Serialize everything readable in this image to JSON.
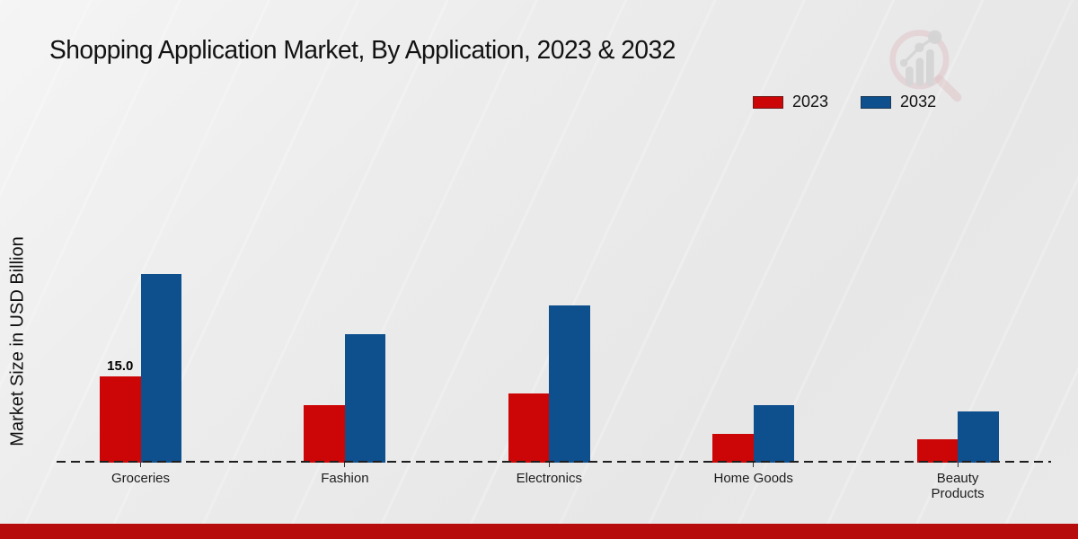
{
  "page": {
    "title": "Shopping Application Market, By Application, 2023 & 2032"
  },
  "theme": {
    "series_2023_color": "#cc0606",
    "series_2032_color": "#0e4f8e",
    "footer_bar_color": "#b70c0c",
    "axis_line_color": "#1e1e1e",
    "background_color": "#eaeaea"
  },
  "legend": {
    "entries": [
      {
        "label": "2023",
        "color": "#cc0606"
      },
      {
        "label": "2032",
        "color": "#0e4f8e"
      }
    ]
  },
  "watermark": {
    "name": "market-research-magnifier-logo"
  },
  "chart_data": {
    "type": "bar",
    "title": "Shopping Application Market, By Application, 2023 & 2032",
    "xlabel": "",
    "ylabel": "Market Size in USD Billion",
    "categories": [
      "Groceries",
      "Fashion",
      "Electronics",
      "Home Goods",
      "Beauty\nProducts"
    ],
    "series": [
      {
        "name": "2023",
        "color": "#cc0606",
        "values": [
          15.0,
          10.0,
          12.0,
          5.0,
          4.0
        ]
      },
      {
        "name": "2032",
        "color": "#0e4f8e",
        "values": [
          32.8,
          22.3,
          27.3,
          10.0,
          8.9
        ]
      }
    ],
    "bar_labels": [
      {
        "series": "2023",
        "category": "Groceries",
        "text": "15.0"
      }
    ],
    "ylim": [
      0,
      35
    ],
    "yaxis_visible": false,
    "grid": false,
    "baseline_style": "dashed",
    "legend_position": "upper right"
  }
}
